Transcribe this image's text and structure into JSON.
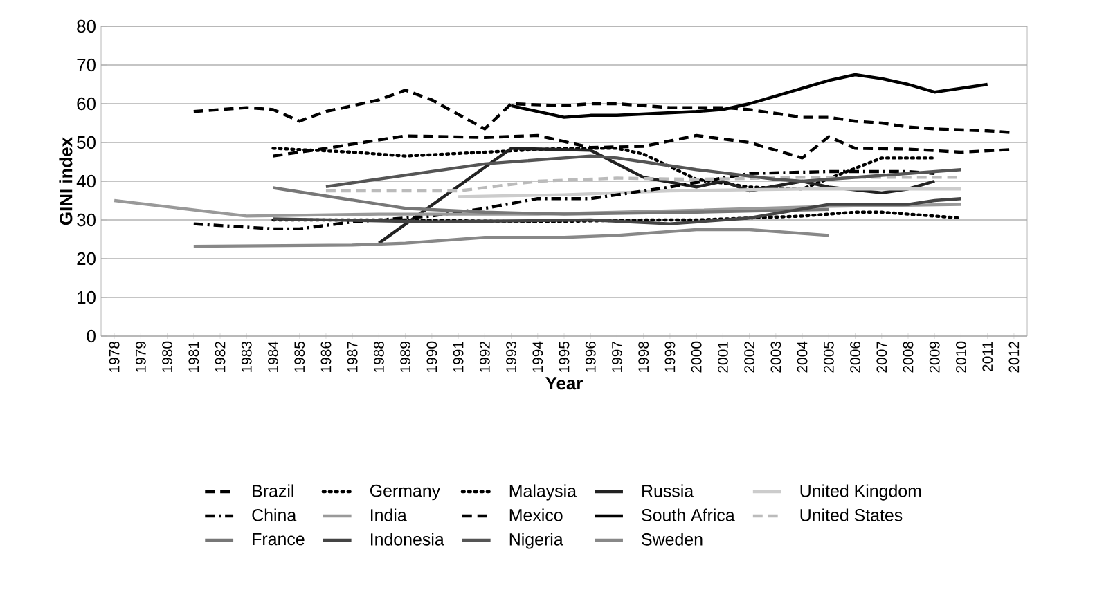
{
  "chart_data": {
    "type": "line",
    "xlabel": "Year",
    "ylabel": "GINI index",
    "categories": [
      "1978",
      "1979",
      "1980",
      "1981",
      "1982",
      "1983",
      "1984",
      "1985",
      "1986",
      "1987",
      "1988",
      "1989",
      "1990",
      "1991",
      "1992",
      "1993",
      "1994",
      "1995",
      "1996",
      "1997",
      "1998",
      "1999",
      "2000",
      "2001",
      "2002",
      "2003",
      "2004",
      "2005",
      "2006",
      "2007",
      "2008",
      "2009",
      "2010",
      "2011",
      "2012"
    ],
    "ylim": [
      0,
      80
    ],
    "yticks": [
      0,
      10,
      20,
      30,
      40,
      50,
      60,
      70,
      80
    ],
    "grid": "y",
    "legend": "bottom",
    "series": [
      {
        "name": "Brazil",
        "color": "#000000",
        "line_style": "dashed",
        "values": [
          null,
          null,
          null,
          58,
          58.5,
          59,
          58.5,
          55.5,
          58,
          59.5,
          61,
          63.5,
          61,
          null,
          53.5,
          60,
          null,
          59.5,
          60,
          60,
          59.5,
          59,
          null,
          59,
          58.5,
          57.5,
          56.5,
          56.5,
          55.5,
          55,
          54,
          53.5,
          null,
          53,
          52.5
        ]
      },
      {
        "name": "Germany",
        "color": "#000000",
        "line_style": "dotted",
        "values": [
          null,
          null,
          null,
          null,
          null,
          null,
          30,
          null,
          null,
          null,
          null,
          30,
          null,
          null,
          null,
          null,
          29.5,
          null,
          null,
          null,
          30,
          null,
          30,
          null,
          30.5,
          null,
          31,
          null,
          32,
          32,
          31.5,
          31,
          30.5,
          null,
          null
        ]
      },
      {
        "name": "Malaysia",
        "color": "#000000",
        "line_style": "dotted",
        "values": [
          null,
          null,
          null,
          null,
          null,
          null,
          48.5,
          null,
          null,
          47.5,
          null,
          46.5,
          null,
          null,
          47.5,
          null,
          null,
          48.5,
          null,
          48.5,
          47,
          null,
          40.5,
          null,
          38.5,
          null,
          38,
          null,
          null,
          46,
          null,
          46,
          null,
          null,
          null
        ]
      },
      {
        "name": "Russia",
        "color": "#222222",
        "line_style": "solid",
        "values": [
          null,
          null,
          null,
          null,
          null,
          null,
          null,
          null,
          null,
          null,
          24,
          null,
          null,
          null,
          null,
          48.5,
          null,
          null,
          48,
          null,
          41,
          null,
          38.5,
          40,
          37.5,
          null,
          40,
          38.5,
          null,
          37,
          38,
          40,
          null,
          null,
          null
        ]
      },
      {
        "name": "United Kingdom",
        "color": "#cccccc",
        "line_style": "solid",
        "values": [
          null,
          null,
          null,
          null,
          null,
          null,
          null,
          null,
          null,
          null,
          null,
          null,
          null,
          36,
          null,
          null,
          null,
          36.5,
          null,
          null,
          null,
          37.5,
          null,
          null,
          null,
          null,
          38,
          null,
          null,
          null,
          null,
          null,
          38,
          null,
          null
        ]
      },
      {
        "name": "China",
        "color": "#000000",
        "line_style": "dashdot",
        "values": [
          null,
          null,
          null,
          29,
          null,
          null,
          27.7,
          27.7,
          null,
          29.5,
          null,
          null,
          31,
          null,
          33,
          null,
          35.5,
          null,
          35.5,
          null,
          37.5,
          38.5,
          null,
          null,
          42,
          null,
          null,
          42.5,
          null,
          null,
          42.5,
          42,
          null,
          null,
          null
        ]
      },
      {
        "name": "India",
        "color": "#999999",
        "line_style": "solid",
        "values": [
          35,
          null,
          null,
          null,
          null,
          31,
          null,
          null,
          null,
          null,
          31.5,
          null,
          null,
          null,
          null,
          null,
          31.5,
          null,
          null,
          null,
          null,
          null,
          32.5,
          null,
          null,
          null,
          null,
          33.5,
          null,
          null,
          null,
          null,
          34,
          null,
          null
        ]
      },
      {
        "name": "Mexico",
        "color": "#000000",
        "line_style": "dashed",
        "values": [
          null,
          null,
          null,
          null,
          null,
          null,
          46.5,
          null,
          48.5,
          null,
          null,
          51.7,
          null,
          null,
          51.3,
          null,
          51.8,
          null,
          48.7,
          null,
          49,
          null,
          51.8,
          null,
          50,
          null,
          46,
          51.5,
          48.5,
          null,
          48.3,
          null,
          47.5,
          null,
          48.2
        ]
      },
      {
        "name": "South Africa",
        "color": "#000000",
        "line_style": "solid",
        "values": [
          null,
          null,
          null,
          null,
          null,
          null,
          null,
          null,
          null,
          null,
          null,
          null,
          null,
          null,
          null,
          59.5,
          null,
          56.5,
          57,
          57,
          null,
          null,
          58,
          58.5,
          60,
          62,
          64,
          66,
          67.5,
          66.5,
          65,
          63,
          64,
          65,
          null
        ]
      },
      {
        "name": "United States",
        "color": "#bbbbbb",
        "line_style": "dashed",
        "values": [
          null,
          null,
          null,
          null,
          null,
          null,
          null,
          null,
          37.5,
          null,
          null,
          null,
          null,
          37.5,
          null,
          null,
          40,
          null,
          null,
          40.8,
          null,
          null,
          40.5,
          null,
          null,
          null,
          41,
          null,
          null,
          41,
          null,
          null,
          41,
          null,
          null
        ]
      },
      {
        "name": "France",
        "color": "#777777",
        "line_style": "solid",
        "values": [
          null,
          null,
          null,
          null,
          null,
          null,
          38.3,
          null,
          null,
          null,
          null,
          33,
          null,
          null,
          32,
          null,
          null,
          31.5,
          null,
          null,
          null,
          null,
          32,
          null,
          null,
          null,
          null,
          32.7,
          null,
          null,
          null,
          null,
          null,
          null,
          null
        ]
      },
      {
        "name": "Indonesia",
        "color": "#444444",
        "line_style": "solid",
        "values": [
          null,
          null,
          null,
          null,
          null,
          null,
          30.3,
          null,
          null,
          null,
          null,
          null,
          29.5,
          null,
          null,
          null,
          null,
          null,
          30,
          null,
          null,
          29,
          null,
          null,
          30.5,
          null,
          null,
          34,
          null,
          null,
          34,
          35,
          35.5,
          null,
          null
        ]
      },
      {
        "name": "Nigeria",
        "color": "#555555",
        "line_style": "solid",
        "values": [
          null,
          null,
          null,
          null,
          null,
          null,
          null,
          null,
          38.6,
          null,
          null,
          null,
          null,
          null,
          44.5,
          null,
          null,
          null,
          46.5,
          46,
          null,
          null,
          43,
          null,
          null,
          40.5,
          40,
          null,
          null,
          null,
          null,
          null,
          43,
          null,
          null
        ]
      },
      {
        "name": "Sweden",
        "color": "#888888",
        "line_style": "solid",
        "values": [
          null,
          null,
          null,
          23.2,
          null,
          null,
          null,
          null,
          null,
          23.5,
          null,
          24,
          null,
          null,
          25.5,
          null,
          null,
          25.5,
          null,
          26,
          null,
          null,
          27.5,
          null,
          27.5,
          null,
          null,
          26,
          null,
          null,
          null,
          null,
          null,
          null,
          null
        ]
      }
    ]
  }
}
